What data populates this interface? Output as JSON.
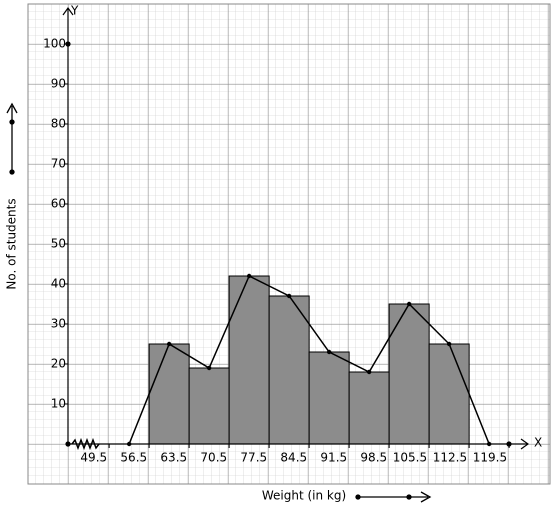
{
  "chart_data": {
    "type": "histogram",
    "x_label": "Weight (in kg)",
    "y_label": "No. of students",
    "x_axis_letter": "X",
    "y_axis_letter": "Y",
    "bins": [
      56.5,
      63.5,
      70.5,
      77.5,
      84.5,
      91.5,
      98.5,
      105.5,
      112.5
    ],
    "values": [
      25,
      19,
      42,
      37,
      23,
      18,
      35,
      25
    ],
    "color": "#8c8c8c",
    "polygon": {
      "x": [
        53,
        60,
        67,
        74,
        81,
        88,
        95,
        102,
        109,
        116
      ],
      "values": [
        0,
        25,
        19,
        42,
        37,
        23,
        18,
        35,
        25,
        0
      ],
      "color": "#000000"
    },
    "xlim": [
      42.3,
      122.8
    ],
    "ylim": [
      0,
      108
    ],
    "xticks": [
      49.5,
      56.5,
      63.5,
      70.5,
      77.5,
      84.5,
      91.5,
      98.5,
      105.5,
      112.5,
      119.5
    ],
    "yticks": [
      10,
      20,
      30,
      40,
      50,
      60,
      70,
      80,
      90,
      100
    ],
    "grid": true
  }
}
